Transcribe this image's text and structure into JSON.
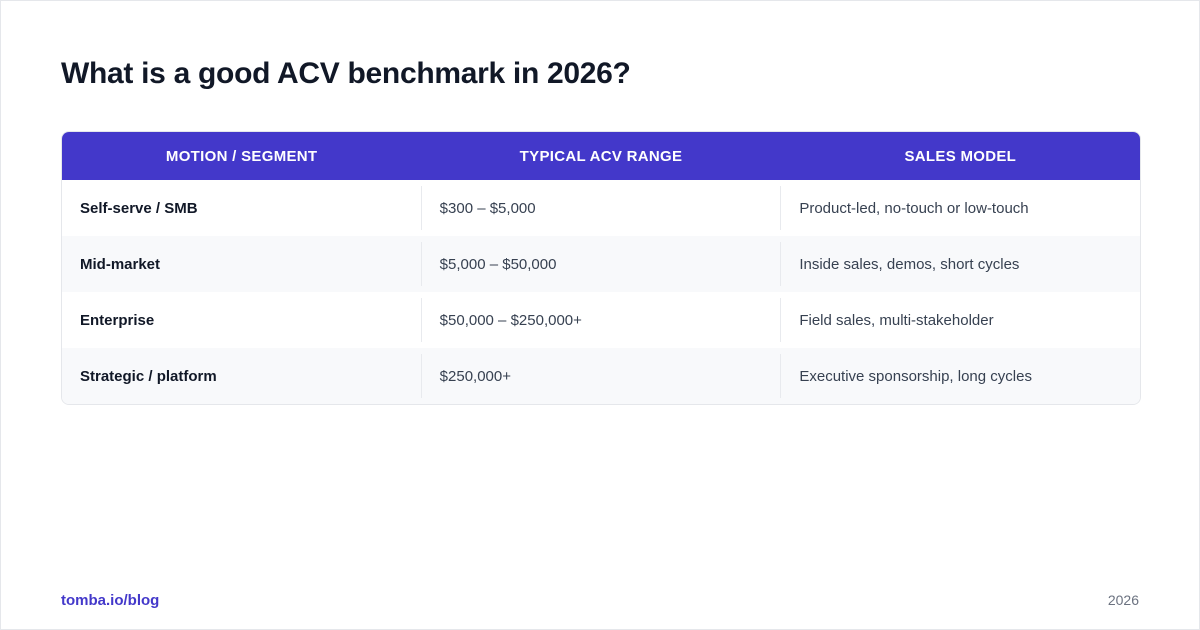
{
  "title": "What is a good ACV benchmark in 2026?",
  "table": {
    "headers": [
      "MOTION / SEGMENT",
      "TYPICAL ACV RANGE",
      "SALES MODEL"
    ],
    "rows": [
      {
        "segment": "Self-serve / SMB",
        "range": "$300 – $5,000",
        "model": "Product-led, no-touch or low-touch"
      },
      {
        "segment": "Mid-market",
        "range": "$5,000 – $50,000",
        "model": "Inside sales, demos, short cycles"
      },
      {
        "segment": "Enterprise",
        "range": "$50,000 – $250,000+",
        "model": "Field sales, multi-stakeholder"
      },
      {
        "segment": "Strategic / platform",
        "range": "$250,000+",
        "model": "Executive sponsorship, long cycles"
      }
    ]
  },
  "footer": {
    "source": "tomba.io/blog",
    "year": "2026"
  },
  "colors": {
    "accent": "#4338ca",
    "header_text": "#ffffff",
    "row_alt": "#f8f9fb"
  }
}
